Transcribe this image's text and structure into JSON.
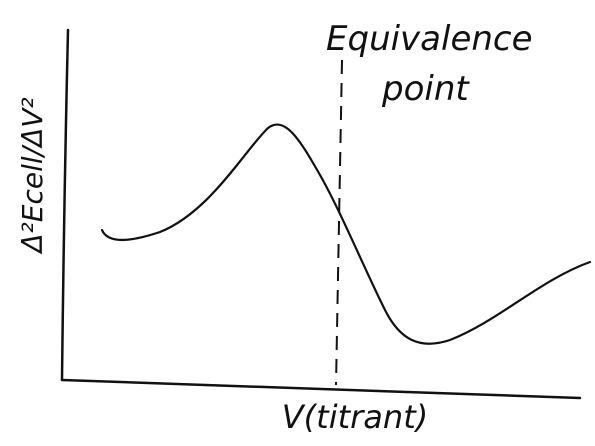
{
  "annotation": {
    "line1": "Equivalence",
    "line2": "point"
  },
  "axes": {
    "y_label": "Δ²Ecell/ΔV²",
    "x_label": "V(titrant)"
  }
}
